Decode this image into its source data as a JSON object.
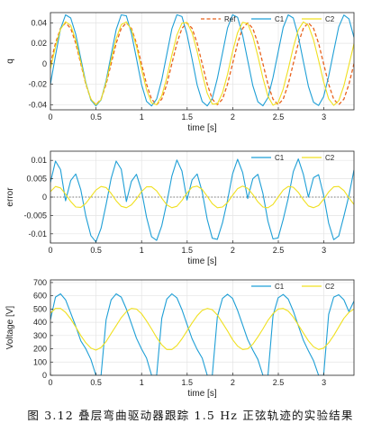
{
  "caption": "图  3.12  叠层弯曲驱动器跟踪 1.5 Hz 正弦轨迹的实验结果",
  "colors": {
    "ref": "#e8611c",
    "c1": "#1f9fd6",
    "c2": "#f0e020",
    "zero": "#555555"
  },
  "chart_data": [
    {
      "type": "line",
      "xlabel": "time [s]",
      "ylabel": "q",
      "xlim": [
        0,
        3.33
      ],
      "ylim": [
        -0.045,
        0.05
      ],
      "xticks": [
        0,
        0.5,
        1,
        1.5,
        2,
        2.5,
        3
      ],
      "yticks": [
        -0.04,
        -0.02,
        0,
        0.02,
        0.04
      ],
      "xtick_labels": [
        "0",
        "0.5",
        "1",
        "1.5",
        "2",
        "2.5",
        "3"
      ],
      "ytick_labels": [
        "-0.04",
        "-0.02",
        "0",
        "0.02",
        "0.04"
      ],
      "grid": true,
      "legend_position": "top-right",
      "series": [
        {
          "name": "Ref",
          "color": "#e8611c",
          "style": "dashed",
          "x": [
            0,
            0.0555,
            0.111,
            0.1665,
            0.222,
            0.2775,
            0.333,
            0.3885,
            0.444,
            0.4995,
            0.555,
            0.6105,
            0.666,
            0.7215,
            0.777,
            0.8325,
            0.888,
            0.9435,
            0.999,
            1.0545,
            1.11,
            1.1655,
            1.221,
            1.2765,
            1.332,
            1.3875,
            1.443,
            1.4985,
            1.554,
            1.6095,
            1.665,
            1.7205,
            1.776,
            1.8315,
            1.887,
            1.9425,
            1.998,
            2.0535,
            2.109,
            2.1645,
            2.22,
            2.2755,
            2.331,
            2.3865,
            2.442,
            2.4975,
            2.553,
            2.6085,
            2.664,
            2.7195,
            2.775,
            2.8305,
            2.886,
            2.9415,
            2.997,
            3.0525,
            3.108,
            3.1635,
            3.219,
            3.2745,
            3.33
          ],
          "y": [
            0,
            0.02,
            0.0346,
            0.04,
            0.0346,
            0.02,
            0,
            -0.02,
            -0.0346,
            -0.04,
            -0.0346,
            -0.02,
            0,
            0.02,
            0.0346,
            0.04,
            0.0346,
            0.02,
            0,
            -0.02,
            -0.0346,
            -0.04,
            -0.0346,
            -0.02,
            0,
            0.02,
            0.0346,
            0.04,
            0.0346,
            0.02,
            0,
            -0.02,
            -0.0346,
            -0.04,
            -0.0346,
            -0.02,
            0,
            0.02,
            0.0346,
            0.04,
            0.0346,
            0.02,
            0,
            -0.02,
            -0.0346,
            -0.04,
            -0.0346,
            -0.02,
            0,
            0.02,
            0.0346,
            0.04,
            0.0346,
            0.02,
            0,
            -0.02,
            -0.0346,
            -0.04,
            -0.0346,
            -0.02,
            0
          ]
        },
        {
          "name": "C1",
          "color": "#1f9fd6",
          "style": "solid",
          "x": [
            0,
            0.0555,
            0.111,
            0.1665,
            0.222,
            0.2775,
            0.333,
            0.3885,
            0.444,
            0.4995,
            0.555,
            0.6105,
            0.666,
            0.7215,
            0.777,
            0.8325,
            0.888,
            0.9435,
            0.999,
            1.0545,
            1.11,
            1.1655,
            1.221,
            1.2765,
            1.332,
            1.3875,
            1.443,
            1.4985,
            1.554,
            1.6095,
            1.665,
            1.7205,
            1.776,
            1.8315,
            1.887,
            1.9425,
            1.998,
            2.0535,
            2.109,
            2.1645,
            2.22,
            2.2755,
            2.331,
            2.3865,
            2.442,
            2.4975,
            2.553,
            2.6085,
            2.664,
            2.7195,
            2.775,
            2.8305,
            2.886,
            2.9415,
            2.997,
            3.0525,
            3.108,
            3.1635,
            3.219,
            3.2745,
            3.33
          ],
          "y": [
            -0.02,
            0.008,
            0.034,
            0.0478,
            0.0447,
            0.0288,
            0.0051,
            -0.0184,
            -0.0355,
            -0.0412,
            -0.0353,
            -0.0165,
            0.0086,
            0.0335,
            0.0478,
            0.0468,
            0.0298,
            0.0052,
            -0.0201,
            -0.0367,
            -0.0412,
            -0.0345,
            -0.0157,
            0.0092,
            0.0341,
            0.0479,
            0.0461,
            0.0288,
            0.0045,
            -0.0208,
            -0.0369,
            -0.0412,
            -0.0339,
            -0.0145,
            0.0103,
            0.0349,
            0.0479,
            0.0454,
            0.0278,
            0.0034,
            -0.0214,
            -0.0372,
            -0.0411,
            -0.0331,
            -0.0134,
            0.0114,
            0.0355,
            0.0478,
            0.0447,
            0.0268,
            0.0022,
            -0.022,
            -0.0376,
            -0.0408,
            -0.0322,
            -0.0122,
            0.0123,
            0.0361,
            0.0476,
            0.0439,
            0.0258
          ]
        },
        {
          "name": "C2",
          "color": "#f0e020",
          "style": "solid",
          "x": [
            0,
            0.0555,
            0.111,
            0.1665,
            0.222,
            0.2775,
            0.333,
            0.3885,
            0.444,
            0.4995,
            0.555,
            0.6105,
            0.666,
            0.7215,
            0.777,
            0.8325,
            0.888,
            0.9435,
            0.999,
            1.0545,
            1.11,
            1.1655,
            1.221,
            1.2765,
            1.332,
            1.3875,
            1.443,
            1.4985,
            1.554,
            1.6095,
            1.665,
            1.7205,
            1.776,
            1.8315,
            1.887,
            1.9425,
            1.998,
            2.0535,
            2.109,
            2.1645,
            2.22,
            2.2755,
            2.331,
            2.3865,
            2.442,
            2.4975,
            2.553,
            2.6085,
            2.664,
            2.7195,
            2.775,
            2.8305,
            2.886,
            2.9415,
            2.997,
            3.0525,
            3.108,
            3.1635,
            3.219,
            3.2745,
            3.33
          ],
          "y": [
            -0.005,
            0.0168,
            0.0338,
            0.041,
            0.0375,
            0.0232,
            0.0016,
            -0.0195,
            -0.0345,
            -0.0402,
            -0.035,
            -0.0183,
            0.0037,
            0.0247,
            0.0382,
            0.0409,
            0.0334,
            0.0169,
            -0.0051,
            -0.0255,
            -0.0383,
            -0.0401,
            -0.0313,
            -0.0136,
            0.0085,
            0.0281,
            0.0396,
            0.0404,
            0.0302,
            0.0121,
            -0.0098,
            -0.0289,
            -0.0394,
            -0.0392,
            -0.0285,
            -0.0103,
            0.0117,
            0.0305,
            0.0405,
            0.0393,
            0.0268,
            0.0076,
            -0.0139,
            -0.0318,
            -0.0405,
            -0.0379,
            -0.0247,
            -0.0053,
            0.0159,
            0.0331,
            0.0409,
            0.0374,
            0.0234,
            0.0034,
            -0.0176,
            -0.0343,
            -0.0407,
            -0.0361,
            -0.0214,
            -0.0012,
            0.0196
          ]
        }
      ]
    },
    {
      "type": "line",
      "xlabel": "time [s]",
      "ylabel": "error",
      "xlim": [
        0,
        3.33
      ],
      "ylim": [
        -0.0125,
        0.0125
      ],
      "xticks": [
        0,
        0.5,
        1,
        1.5,
        2,
        2.5,
        3
      ],
      "yticks": [
        -0.01,
        -0.005,
        0,
        0.005,
        0.01
      ],
      "xtick_labels": [
        "0",
        "0.5",
        "1",
        "1.5",
        "2",
        "2.5",
        "3"
      ],
      "ytick_labels": [
        "-0.01",
        "-0.005",
        "0",
        "0.005",
        "0.01"
      ],
      "grid": true,
      "zero_line": true,
      "legend_position": "top-right",
      "series": [
        {
          "name": "C1",
          "color": "#1f9fd6",
          "style": "solid",
          "x": [
            0,
            0.0555,
            0.111,
            0.1665,
            0.222,
            0.2775,
            0.333,
            0.3885,
            0.444,
            0.4995,
            0.555,
            0.6105,
            0.666,
            0.7215,
            0.777,
            0.8325,
            0.888,
            0.9435,
            0.999,
            1.0545,
            1.11,
            1.1655,
            1.221,
            1.2765,
            1.332,
            1.3875,
            1.443,
            1.4985,
            1.554,
            1.6095,
            1.665,
            1.7205,
            1.776,
            1.8315,
            1.887,
            1.9425,
            1.998,
            2.0535,
            2.109,
            2.1645,
            2.22,
            2.2755,
            2.331,
            2.3865,
            2.442,
            2.4975,
            2.553,
            2.6085,
            2.664,
            2.7195,
            2.775,
            2.8305,
            2.886,
            2.9415,
            2.997,
            3.0525,
            3.108,
            3.1635,
            3.219,
            3.2745,
            3.33
          ],
          "y": [
            0.004,
            0.0098,
            0.0075,
            -0.001,
            0.0045,
            0.0063,
            0.002,
            -0.0052,
            -0.0105,
            -0.0122,
            -0.0085,
            -0.002,
            0.0051,
            0.0098,
            0.0076,
            -0.0012,
            0.0043,
            0.0062,
            0.0018,
            -0.0055,
            -0.0108,
            -0.0118,
            -0.0078,
            -0.0015,
            0.0057,
            0.0101,
            0.0071,
            -0.0008,
            0.0047,
            0.0063,
            0.0014,
            -0.0061,
            -0.0112,
            -0.0115,
            -0.007,
            -0.0009,
            0.0063,
            0.0103,
            0.0067,
            -0.0004,
            0.005,
            0.0062,
            0.001,
            -0.0066,
            -0.0114,
            -0.0111,
            -0.0061,
            -0.0003,
            0.0069,
            0.0104,
            0.0062,
            0,
            0.0053,
            0.0061,
            0.0005,
            -0.0071,
            -0.0116,
            -0.0106,
            -0.0052,
            0.0004,
            0.0074
          ]
        },
        {
          "name": "C2",
          "color": "#f0e020",
          "style": "solid",
          "x": [
            0,
            0.0555,
            0.111,
            0.1665,
            0.222,
            0.2775,
            0.333,
            0.3885,
            0.444,
            0.4995,
            0.555,
            0.6105,
            0.666,
            0.7215,
            0.777,
            0.8325,
            0.888,
            0.9435,
            0.999,
            1.0545,
            1.11,
            1.1655,
            1.221,
            1.2765,
            1.332,
            1.3875,
            1.443,
            1.4985,
            1.554,
            1.6095,
            1.665,
            1.7205,
            1.776,
            1.8315,
            1.887,
            1.9425,
            1.998,
            2.0535,
            2.109,
            2.1645,
            2.22,
            2.2755,
            2.331,
            2.3865,
            2.442,
            2.4975,
            2.553,
            2.6085,
            2.664,
            2.7195,
            2.775,
            2.8305,
            2.886,
            2.9415,
            2.997,
            3.0525,
            3.108,
            3.1635,
            3.219,
            3.2745,
            3.33
          ],
          "y": [
            0.0015,
            0.0029,
            0.0025,
            0.0008,
            -0.0012,
            -0.0027,
            -0.0028,
            -0.0017,
            0.0001,
            0.0019,
            0.0029,
            0.0026,
            0.001,
            -0.001,
            -0.0025,
            -0.0029,
            -0.0021,
            -0.0005,
            0.0015,
            0.0028,
            0.0028,
            0.0017,
            -0.0003,
            -0.0021,
            -0.0029,
            -0.0025,
            -0.0009,
            0.0011,
            0.0027,
            0.003,
            0.0021,
            0.0002,
            -0.0018,
            -0.0029,
            -0.0027,
            -0.0015,
            0.0005,
            0.0023,
            0.003,
            0.0024,
            0.0007,
            -0.0013,
            -0.0027,
            -0.0029,
            -0.002,
            0,
            0.0019,
            0.0029,
            0.0027,
            0.0013,
            -0.0007,
            -0.0024,
            -0.0029,
            -0.0023,
            -0.0006,
            0.0014,
            0.0028,
            0.0029,
            0.0018,
            -0.0002,
            -0.002
          ]
        }
      ]
    },
    {
      "type": "line",
      "xlabel": "time [s]",
      "ylabel": "Voltage [V]",
      "xlim": [
        0,
        3.33
      ],
      "ylim": [
        0,
        720
      ],
      "xticks": [
        0,
        0.5,
        1,
        1.5,
        2,
        2.5,
        3
      ],
      "yticks": [
        0,
        100,
        200,
        300,
        400,
        500,
        600,
        700
      ],
      "xtick_labels": [
        "0",
        "0.5",
        "1",
        "1.5",
        "2",
        "2.5",
        "3"
      ],
      "ytick_labels": [
        "0",
        "100",
        "200",
        "300",
        "400",
        "500",
        "600",
        "700"
      ],
      "grid": true,
      "legend_position": "top-right",
      "series": [
        {
          "name": "C1",
          "color": "#1f9fd6",
          "style": "solid",
          "x": [
            0,
            0.0555,
            0.111,
            0.1665,
            0.222,
            0.2775,
            0.333,
            0.3885,
            0.444,
            0.4995,
            0.555,
            0.6105,
            0.666,
            0.7215,
            0.777,
            0.8325,
            0.888,
            0.9435,
            0.999,
            1.0545,
            1.11,
            1.1655,
            1.221,
            1.2765,
            1.332,
            1.3875,
            1.443,
            1.4985,
            1.554,
            1.6095,
            1.665,
            1.7205,
            1.776,
            1.8315,
            1.887,
            1.9425,
            1.998,
            2.0535,
            2.109,
            2.1645,
            2.22,
            2.2755,
            2.331,
            2.3865,
            2.442,
            2.4975,
            2.553,
            2.6085,
            2.664,
            2.7195,
            2.775,
            2.8305,
            2.886,
            2.9415,
            2.997,
            3.0525,
            3.108,
            3.1635,
            3.219,
            3.2745,
            3.33
          ],
          "y": [
            420,
            590,
            615,
            570,
            470,
            370,
            260,
            200,
            120,
            0,
            0,
            420,
            570,
            615,
            590,
            500,
            390,
            280,
            200,
            130,
            0,
            0,
            430,
            575,
            615,
            585,
            495,
            385,
            275,
            195,
            130,
            0,
            0,
            440,
            580,
            612,
            580,
            490,
            380,
            270,
            190,
            120,
            0,
            0,
            450,
            585,
            610,
            575,
            485,
            375,
            265,
            185,
            110,
            0,
            0,
            460,
            590,
            608,
            570,
            480,
            560
          ]
        },
        {
          "name": "C2",
          "color": "#f0e020",
          "style": "solid",
          "x": [
            0,
            0.0555,
            0.111,
            0.1665,
            0.222,
            0.2775,
            0.333,
            0.3885,
            0.444,
            0.4995,
            0.555,
            0.6105,
            0.666,
            0.7215,
            0.777,
            0.8325,
            0.888,
            0.9435,
            0.999,
            1.0545,
            1.11,
            1.1655,
            1.221,
            1.2765,
            1.332,
            1.3875,
            1.443,
            1.4985,
            1.554,
            1.6095,
            1.665,
            1.7205,
            1.776,
            1.8315,
            1.887,
            1.9425,
            1.998,
            2.0535,
            2.109,
            2.1645,
            2.22,
            2.2755,
            2.331,
            2.3865,
            2.442,
            2.4975,
            2.553,
            2.6085,
            2.664,
            2.7195,
            2.775,
            2.8305,
            2.886,
            2.9415,
            2.997,
            3.0525,
            3.108,
            3.1635,
            3.219,
            3.2745,
            3.33
          ],
          "y": [
            470,
            505,
            505,
            475,
            425,
            365,
            300,
            245,
            205,
            190,
            210,
            255,
            315,
            375,
            435,
            480,
            505,
            500,
            465,
            410,
            350,
            285,
            230,
            195,
            195,
            225,
            275,
            335,
            395,
            450,
            490,
            505,
            495,
            455,
            395,
            335,
            270,
            220,
            195,
            200,
            235,
            290,
            350,
            415,
            465,
            500,
            505,
            485,
            440,
            380,
            320,
            260,
            215,
            195,
            205,
            245,
            300,
            365,
            430,
            475,
            500
          ]
        }
      ]
    }
  ]
}
